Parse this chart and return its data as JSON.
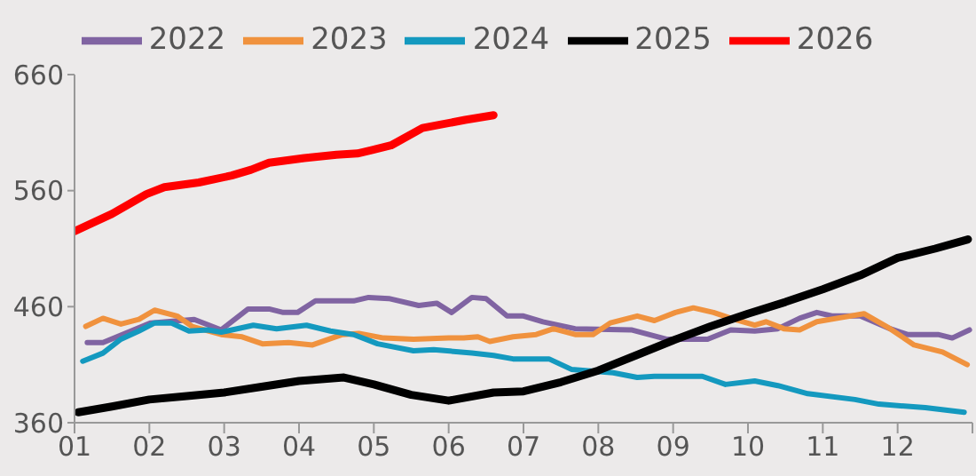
{
  "chart_data": {
    "type": "line",
    "legend": "top",
    "grid": false,
    "xlim": [
      1,
      13
    ],
    "ylim": [
      360,
      660
    ],
    "yticks": [
      360,
      460,
      560,
      660
    ],
    "xticks": [
      {
        "value": 1,
        "label": "01"
      },
      {
        "value": 2,
        "label": "02"
      },
      {
        "value": 3,
        "label": "03"
      },
      {
        "value": 4,
        "label": "04"
      },
      {
        "value": 5,
        "label": "05"
      },
      {
        "value": 6,
        "label": "06"
      },
      {
        "value": 7,
        "label": "07"
      },
      {
        "value": 8,
        "label": "08"
      },
      {
        "value": 9,
        "label": "09"
      },
      {
        "value": 10,
        "label": "10"
      },
      {
        "value": 11,
        "label": "11"
      },
      {
        "value": 12,
        "label": "12"
      },
      {
        "value": 13,
        "label": null
      }
    ],
    "series": [
      {
        "name": "2022",
        "color": "#8064a2",
        "x": [
          1.17,
          1.38,
          2.02,
          2.6,
          2.96,
          3.32,
          3.6,
          3.79,
          3.98,
          4.22,
          4.73,
          4.93,
          5.2,
          5.6,
          5.84,
          6.04,
          6.31,
          6.5,
          6.78,
          7.0,
          7.26,
          7.69,
          8.44,
          8.91,
          9.46,
          9.77,
          10.09,
          10.4,
          10.69,
          10.92,
          11.12,
          11.5,
          11.9,
          12.13,
          12.54,
          12.73,
          12.96
        ],
        "values": [
          429,
          429,
          446,
          449,
          440,
          458,
          458,
          455,
          455,
          465,
          465,
          468,
          467,
          461,
          463,
          455,
          468,
          467,
          452,
          452,
          447,
          441,
          440,
          432,
          432,
          440,
          439,
          441,
          450,
          455,
          452,
          452,
          441,
          436,
          436,
          433,
          440
        ]
      },
      {
        "name": "2023",
        "color": "#f0923e",
        "x": [
          1.15,
          1.38,
          1.62,
          1.86,
          2.07,
          2.37,
          2.57,
          2.96,
          3.24,
          3.51,
          3.86,
          4.18,
          4.58,
          4.8,
          5.13,
          5.53,
          6.0,
          6.2,
          6.39,
          6.55,
          6.86,
          7.17,
          7.4,
          7.69,
          7.93,
          8.16,
          8.52,
          8.75,
          9.03,
          9.27,
          9.54,
          9.77,
          10.09,
          10.24,
          10.48,
          10.69,
          10.92,
          11.28,
          11.55,
          11.9,
          12.22,
          12.6,
          12.93
        ],
        "values": [
          443,
          450,
          445,
          449,
          457,
          452,
          443,
          436,
          434,
          428,
          429,
          427,
          436,
          437,
          433,
          432,
          433,
          433,
          434,
          430,
          434,
          436,
          441,
          436,
          436,
          446,
          452,
          448,
          455,
          459,
          455,
          450,
          444,
          447,
          441,
          440,
          447,
          451,
          454,
          441,
          427,
          421,
          410
        ]
      },
      {
        "name": "2024",
        "color": "#1499bf",
        "x": [
          1.11,
          1.38,
          1.62,
          1.86,
          2.07,
          2.29,
          2.53,
          2.78,
          2.96,
          3.39,
          3.7,
          4.1,
          4.42,
          4.73,
          5.05,
          5.53,
          5.8,
          6.31,
          6.6,
          6.86,
          7.34,
          7.64,
          8.2,
          8.52,
          8.75,
          9.39,
          9.7,
          10.09,
          10.4,
          10.8,
          11.43,
          11.75,
          12.37,
          12.89
        ],
        "values": [
          413,
          420,
          432,
          439,
          446,
          446,
          439,
          440,
          438,
          444,
          441,
          444,
          439,
          436,
          428,
          422,
          423,
          420,
          418,
          415,
          415,
          406,
          403,
          399,
          400,
          400,
          393,
          396,
          392,
          385,
          380,
          376,
          373,
          369
        ]
      },
      {
        "name": "2025",
        "color": "#000000",
        "x": [
          1.05,
          1.5,
          2.0,
          2.5,
          3.0,
          3.5,
          4.0,
          4.6,
          5.0,
          5.5,
          6.0,
          6.6,
          7.0,
          7.5,
          8.0,
          8.5,
          9.0,
          9.5,
          10.0,
          10.5,
          11.0,
          11.5,
          12.0,
          12.5,
          12.94
        ],
        "values": [
          369,
          374,
          380,
          383,
          386,
          391,
          396,
          399,
          393,
          384,
          379,
          386,
          387,
          395,
          405,
          418,
          431,
          443,
          454,
          464,
          475,
          487,
          502,
          510,
          518
        ]
      },
      {
        "name": "2026",
        "color": "#ff0000",
        "x": [
          1.0,
          1.5,
          1.96,
          2.2,
          2.66,
          3.1,
          3.36,
          3.6,
          4.07,
          4.5,
          4.78,
          4.98,
          5.23,
          5.65,
          5.9,
          6.22,
          6.6
        ],
        "values": [
          525,
          540,
          557,
          563,
          567,
          573,
          578,
          584,
          588,
          591,
          592,
          595,
          599,
          614,
          617,
          621,
          625
        ]
      }
    ]
  }
}
